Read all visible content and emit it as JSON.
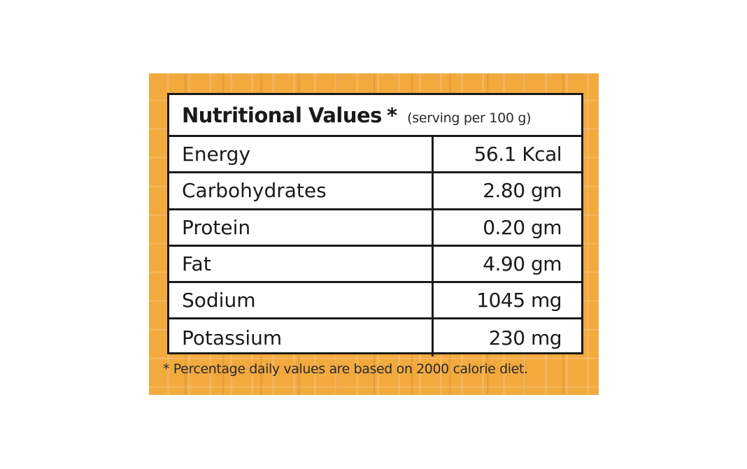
{
  "label": {
    "title": "Nutritional Values",
    "title_marker": "*",
    "serving": "(serving per 100 g)",
    "rows": [
      {
        "name": "Energy",
        "value": "56.1 Kcal"
      },
      {
        "name": "Carbohydrates",
        "value": "2.80 gm"
      },
      {
        "name": "Protein",
        "value": "0.20 gm"
      },
      {
        "name": "Fat",
        "value": "4.90 gm"
      },
      {
        "name": "Sodium",
        "value": "1045 mg"
      },
      {
        "name": "Potassium",
        "value": "230 mg"
      }
    ],
    "footnote": "* Percentage daily values are based on 2000 calorie diet."
  },
  "colors": {
    "background": "#f2a93e",
    "card": "#ffffff",
    "border": "#1a1a1a"
  }
}
